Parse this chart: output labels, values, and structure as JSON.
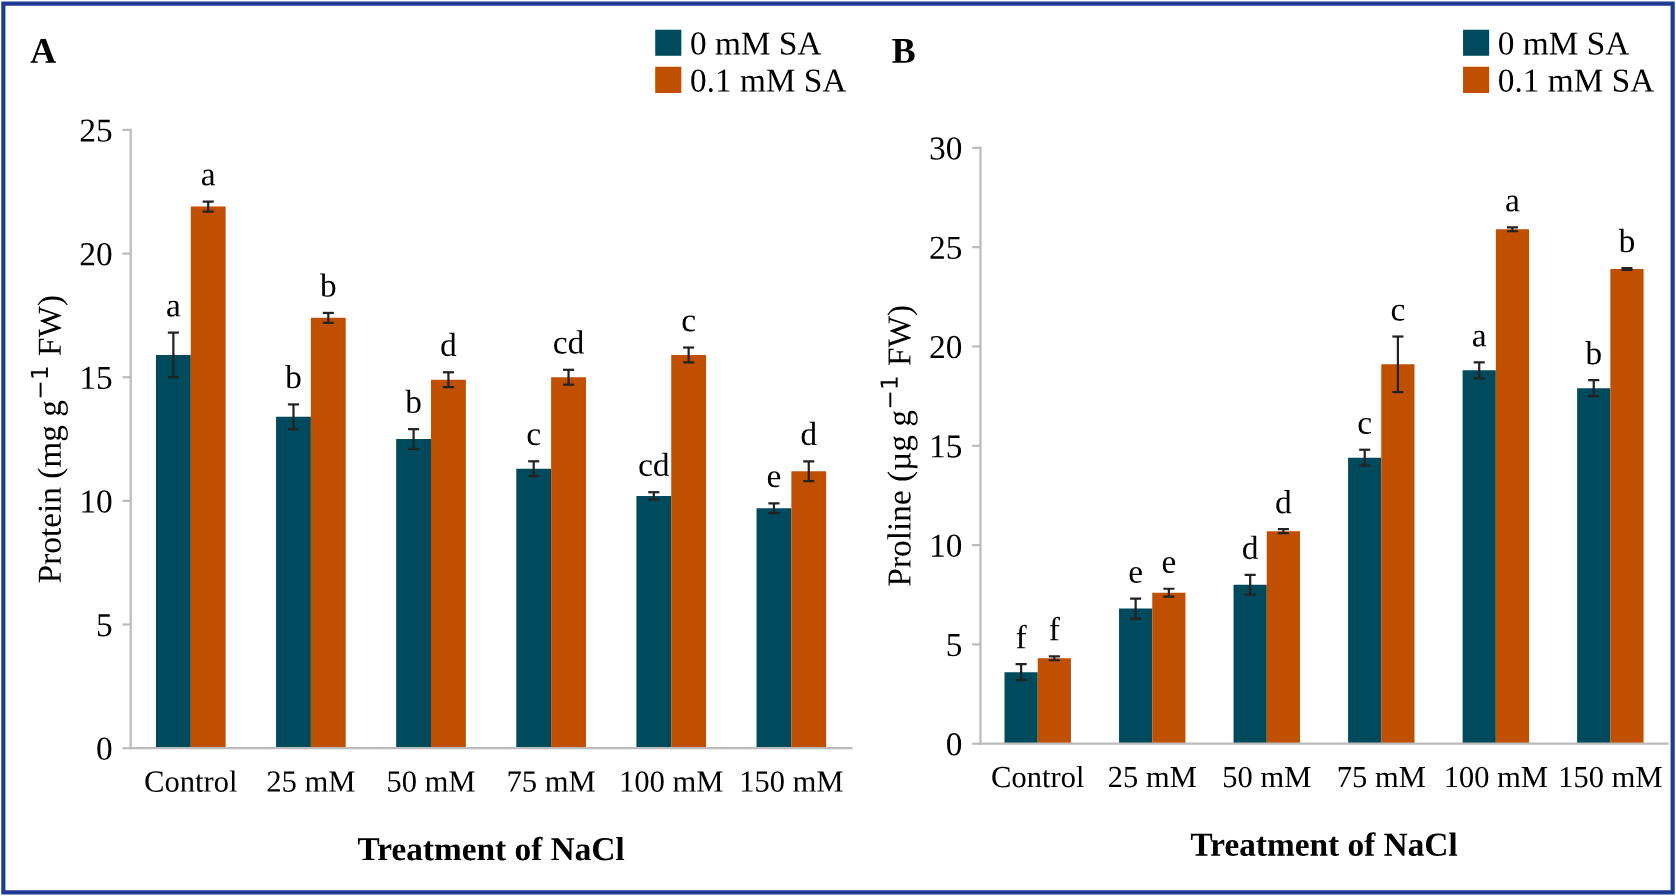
{
  "chart_data": [
    {
      "type": "bar",
      "title": "A",
      "xlabel": "Treatment of NaCl",
      "ylabel": "Protein (mg g$^{−1}$ FW)",
      "categories": [
        "Control",
        "25 mM",
        "50 mM",
        "75 mM",
        "100 mM",
        "150 mM"
      ],
      "series": [
        {
          "name": "0 mM SA",
          "color": "#004a5e",
          "values": [
            15.9,
            13.4,
            12.5,
            11.3,
            10.2,
            9.7
          ],
          "errors": [
            0.9,
            0.5,
            0.4,
            0.3,
            0.15,
            0.2
          ]
        },
        {
          "name": "0.1 mM SA",
          "color": "#c05000",
          "values": [
            21.9,
            17.4,
            14.9,
            15.0,
            15.9,
            11.2
          ],
          "errors": [
            0.2,
            0.2,
            0.3,
            0.3,
            0.3,
            0.4
          ]
        }
      ],
      "ylim": [
        0,
        25
      ],
      "yticks": [
        0,
        5,
        10,
        15,
        20,
        25
      ],
      "grid": false,
      "legend": "top right",
      "annotations": [
        {
          "text": "a",
          "x": "Control",
          "y": 15.9
        },
        {
          "text": "a",
          "x": "Control",
          "y": 21.9
        },
        {
          "text": "b",
          "x": "25 mM",
          "y": 13.4
        },
        {
          "text": "b",
          "x": "25 mM",
          "y": 17.4
        },
        {
          "text": "b",
          "x": "50 mM",
          "y": 12.5
        },
        {
          "text": "d",
          "x": "50 mM",
          "y": 14.9
        },
        {
          "text": "c",
          "x": "75 mM",
          "y": 11.3
        },
        {
          "text": "cd",
          "x": "75 mM",
          "y": 15.0
        },
        {
          "text": "cd",
          "x": "100 mM",
          "y": 10.2
        },
        {
          "text": "c",
          "x": "100 mM",
          "y": 15.9
        },
        {
          "text": "e",
          "x": "150 mM",
          "y": 9.7
        },
        {
          "text": "d",
          "x": "150 mM",
          "y": 11.2
        }
      ]
    },
    {
      "type": "bar",
      "title": "B",
      "xlabel": "Treatment of NaCl",
      "ylabel": "Proline (µg g$^{−1}$ FW)",
      "categories": [
        "Control",
        "25 mM",
        "50 mM",
        "75 mM",
        "100 mM",
        "150 mM"
      ],
      "series": [
        {
          "name": "0 mM SA",
          "color": "#004a5e",
          "values": [
            3.6,
            6.8,
            8.0,
            14.4,
            18.8,
            17.9
          ],
          "errors": [
            0.4,
            0.5,
            0.5,
            0.4,
            0.4,
            0.4
          ]
        },
        {
          "name": "0.1 mM SA",
          "color": "#c05000",
          "values": [
            4.3,
            7.6,
            10.7,
            19.1,
            25.9,
            23.9
          ],
          "errors": [
            0.1,
            0.2,
            0.1,
            1.4,
            0.1,
            0.05
          ]
        }
      ],
      "ylim": [
        0,
        30
      ],
      "yticks": [
        0,
        5,
        10,
        15,
        20,
        25,
        30
      ],
      "grid": false,
      "legend": "top right",
      "annotations": [
        {
          "text": "f",
          "x": "Control",
          "y": 3.6
        },
        {
          "text": "f",
          "x": "Control",
          "y": 4.3
        },
        {
          "text": "e",
          "x": "25 mM",
          "y": 6.8
        },
        {
          "text": "e",
          "x": "25 mM",
          "y": 7.6
        },
        {
          "text": "d",
          "x": "50 mM",
          "y": 8.0
        },
        {
          "text": "d",
          "x": "50 mM",
          "y": 10.7
        },
        {
          "text": "c",
          "x": "75 mM",
          "y": 14.4
        },
        {
          "text": "c",
          "x": "75 mM",
          "y": 19.1
        },
        {
          "text": "a",
          "x": "100 mM",
          "y": 18.8
        },
        {
          "text": "a",
          "x": "100 mM",
          "y": 25.9
        },
        {
          "text": "b",
          "x": "150 mM",
          "y": 17.9
        },
        {
          "text": "b",
          "x": "150 mM",
          "y": 23.9
        }
      ]
    }
  ]
}
